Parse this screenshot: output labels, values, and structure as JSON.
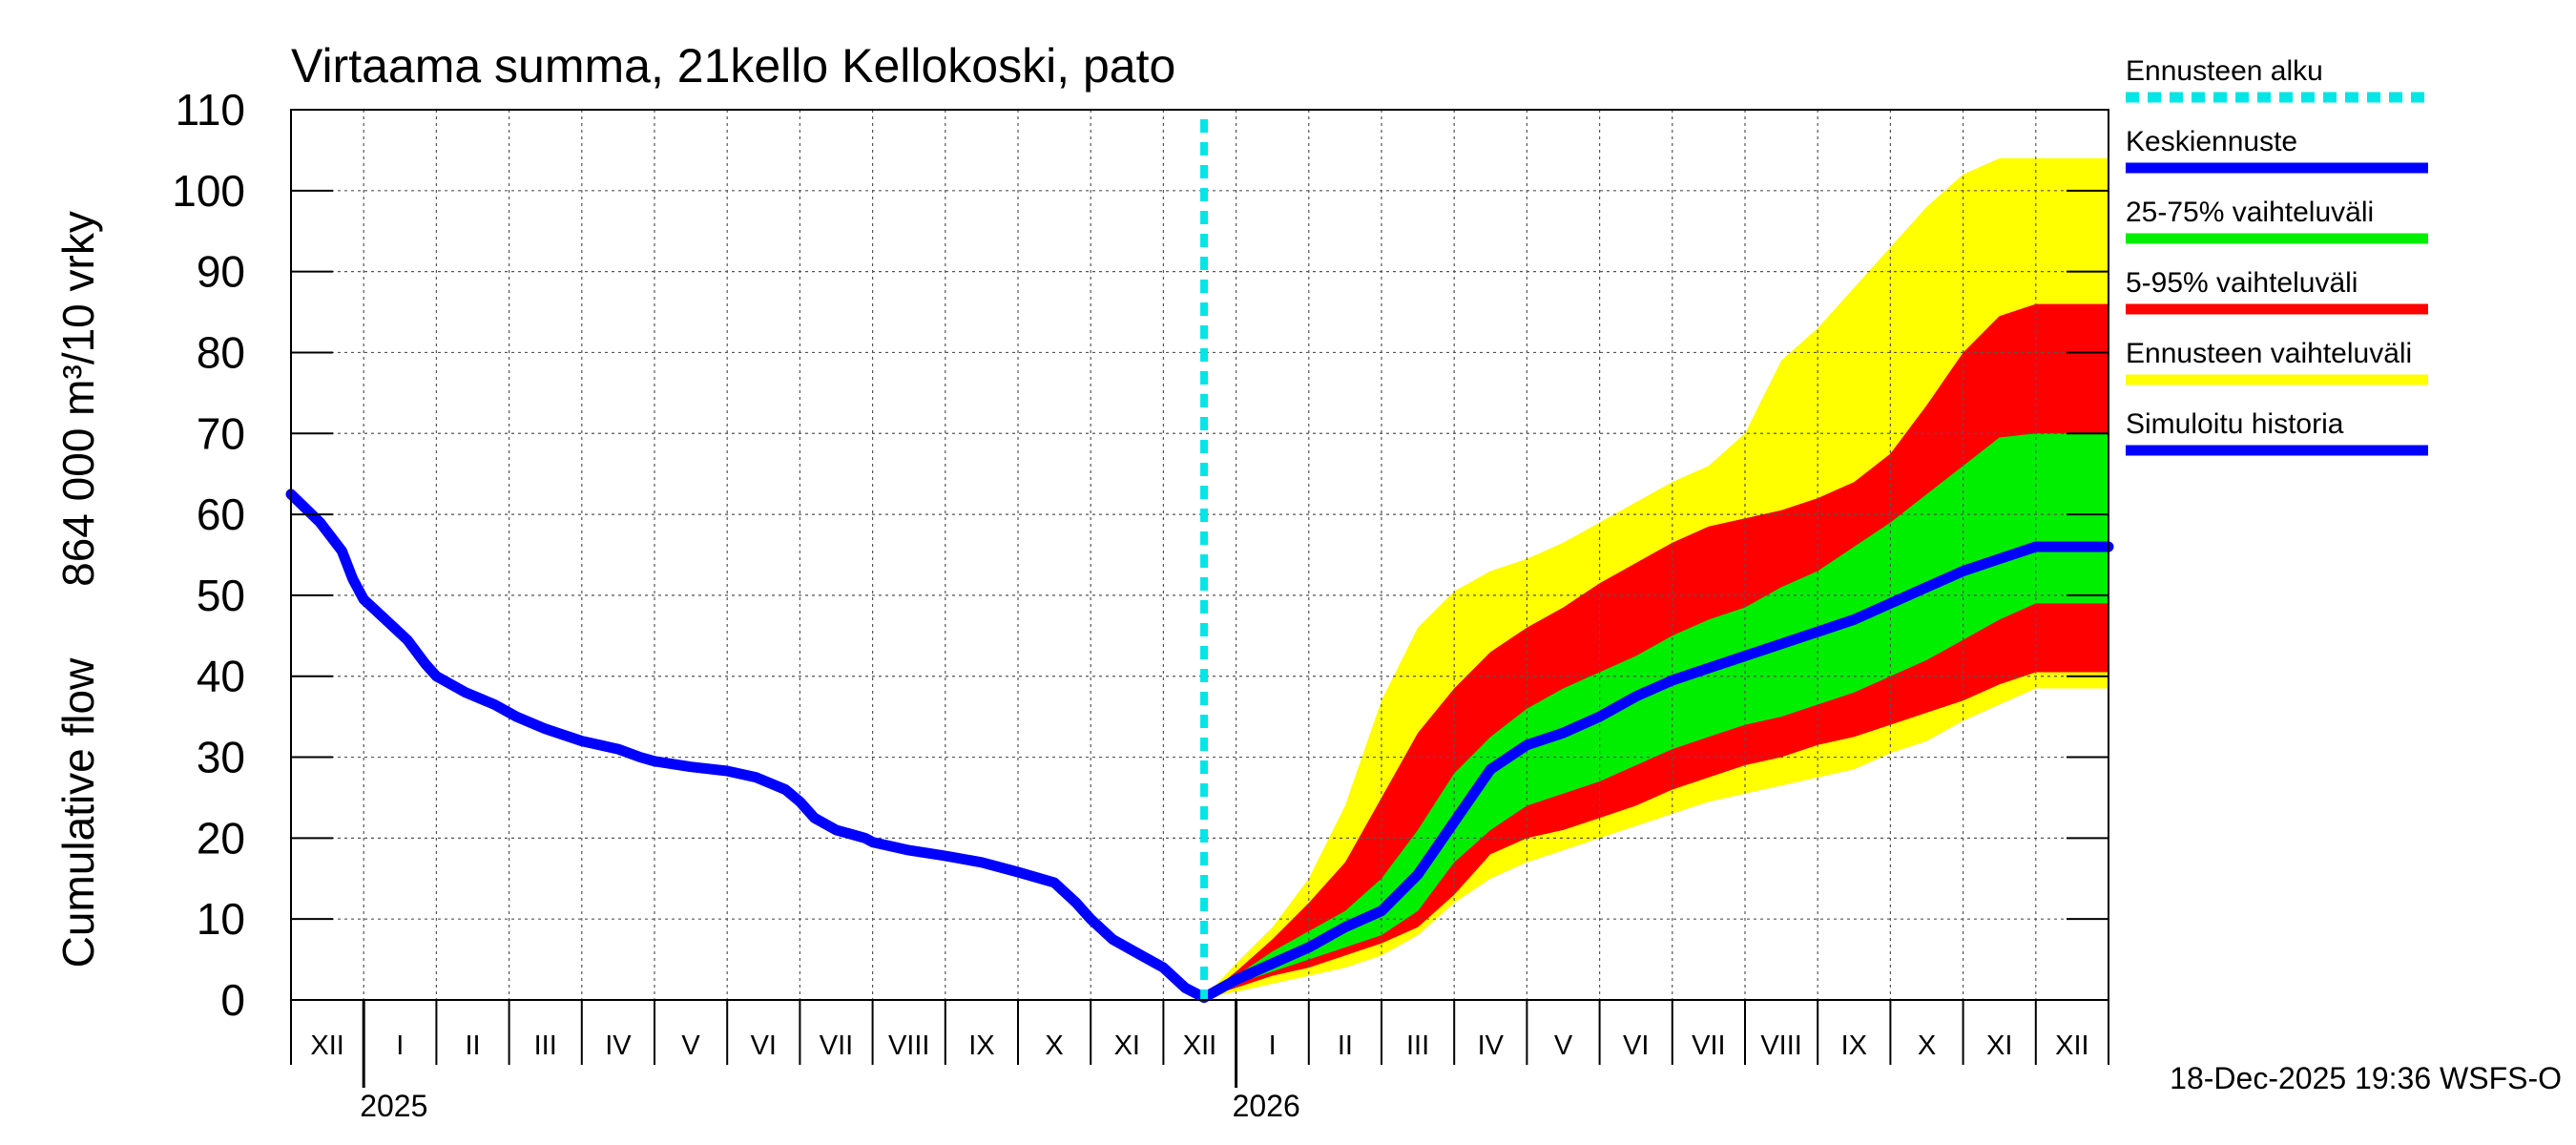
{
  "chart_data": {
    "type": "area",
    "title": "Virtaama summa, 21kello Kellokoski, pato",
    "ylabel_line1": "Cumulative flow",
    "ylabel_line2": "864 000 m³/10 vrky",
    "ylim": [
      0,
      110
    ],
    "yticks": [
      0,
      10,
      20,
      30,
      40,
      50,
      60,
      70,
      80,
      90,
      100,
      110
    ],
    "grid": true,
    "x_unit": "months since 2024-12-01",
    "xlim": [
      0,
      25
    ],
    "month_labels": [
      "XII",
      "I",
      "II",
      "III",
      "IV",
      "V",
      "VI",
      "VII",
      "VIII",
      "IX",
      "X",
      "XI",
      "XII",
      "I",
      "II",
      "III",
      "IV",
      "V",
      "VI",
      "VII",
      "VIII",
      "IX",
      "X",
      "XI",
      "XII"
    ],
    "year_labels": [
      {
        "label": "2025",
        "at_month": 1
      },
      {
        "label": "2026",
        "at_month": 13
      }
    ],
    "forecast_start": 12.56,
    "simulated_history": {
      "x": [
        0,
        0.4,
        0.7,
        0.85,
        1.0,
        1.3,
        1.6,
        1.85,
        2.0,
        2.4,
        2.8,
        3.1,
        3.5,
        4.0,
        4.5,
        4.8,
        5.0,
        5.5,
        6.0,
        6.4,
        6.8,
        7.0,
        7.2,
        7.5,
        7.9,
        8.0,
        8.5,
        9.0,
        9.5,
        10.0,
        10.5,
        10.8,
        11.0,
        11.3,
        11.7,
        12.0,
        12.3,
        12.56
      ],
      "y": [
        62.5,
        59,
        55.5,
        52,
        49.5,
        47,
        44.5,
        41.5,
        40,
        38,
        36.5,
        35,
        33.5,
        32,
        31,
        30,
        29.5,
        28.8,
        28.3,
        27.5,
        26,
        24.5,
        22.5,
        21,
        20,
        19.5,
        18.5,
        17.8,
        17,
        15.8,
        14.5,
        12,
        10,
        7.5,
        5.5,
        4,
        1.5,
        0.3
      ]
    },
    "forecast": {
      "x": [
        12.56,
        13.0,
        13.5,
        14.0,
        14.5,
        15.0,
        15.5,
        16.0,
        16.5,
        17.0,
        17.5,
        18.0,
        18.5,
        19.0,
        19.5,
        20.0,
        20.5,
        21.0,
        21.5,
        22.0,
        22.5,
        23.0,
        23.5,
        24.0,
        24.5,
        25.0
      ],
      "mean": [
        0.3,
        2.5,
        4.5,
        6.5,
        9,
        11,
        15.5,
        22,
        28.5,
        31.5,
        33,
        35,
        37.5,
        39.5,
        41,
        42.5,
        44,
        45.5,
        47,
        49,
        51,
        53,
        54.5,
        56,
        56,
        56
      ],
      "p25": [
        0.3,
        2,
        3.5,
        5,
        6.5,
        8,
        11,
        17,
        21,
        24,
        25.5,
        27,
        29,
        31,
        32.5,
        34,
        35,
        36.5,
        38,
        40,
        42,
        44.5,
        47,
        49,
        49,
        49
      ],
      "p75": [
        0.3,
        3,
        6,
        8.5,
        11,
        15,
        21,
        28,
        32.5,
        36,
        38.5,
        40.5,
        42.5,
        45,
        47,
        48.5,
        51,
        53,
        56,
        59,
        62.5,
        66,
        69.5,
        70,
        70,
        70
      ],
      "p5": [
        0.3,
        1.5,
        3,
        4,
        5.5,
        7,
        9,
        13,
        18,
        20,
        21,
        22.5,
        24,
        26,
        27.5,
        29,
        30,
        31.5,
        32.5,
        34,
        35.5,
        37,
        39,
        40.5,
        40.5,
        40.5
      ],
      "p95": [
        0.3,
        3.5,
        7.5,
        12,
        17,
        25,
        33,
        38.5,
        43,
        46,
        48.5,
        51.5,
        54,
        56.5,
        58.5,
        59.5,
        60.5,
        62,
        64,
        67.5,
        73.5,
        80,
        84.5,
        86,
        86,
        86
      ],
      "min": [
        0.3,
        1,
        2,
        3,
        4,
        5.5,
        8,
        12,
        15,
        17,
        18.5,
        20,
        21.5,
        23,
        24.5,
        25.5,
        26.5,
        27.5,
        28.5,
        30.5,
        32,
        34.5,
        36.5,
        38.5,
        38.5,
        38.5
      ],
      "max": [
        0.3,
        4.5,
        9,
        15,
        24,
        37,
        46,
        50.5,
        53,
        54.5,
        56.5,
        59,
        61.5,
        64,
        66,
        70,
        79,
        83,
        88,
        93,
        98,
        102,
        104,
        104,
        104,
        104
      ]
    },
    "colors": {
      "forecast_start": "#00e5e5",
      "mean": "#0000ff",
      "iqr": "#00ee00",
      "p5_95": "#ff0000",
      "range": "#ffff00",
      "history": "#0000ff"
    }
  },
  "legend": [
    {
      "label": "Ennusteen alku",
      "color": "#00e5e5",
      "style": "dotted"
    },
    {
      "label": "Keskiennuste",
      "color": "#0000ff",
      "style": "solid"
    },
    {
      "label": "25-75% vaihteluväli",
      "color": "#00ee00",
      "style": "solid"
    },
    {
      "label": "5-95% vaihteluväli",
      "color": "#ff0000",
      "style": "solid"
    },
    {
      "label": "Ennusteen vaihteluväli",
      "color": "#ffff00",
      "style": "solid"
    },
    {
      "label": "Simuloitu historia",
      "color": "#0000ff",
      "style": "solid"
    }
  ],
  "footer": "18-Dec-2025 19:36 WSFS-O"
}
